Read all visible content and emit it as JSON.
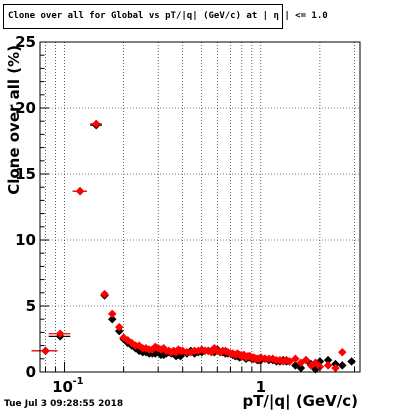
{
  "title": "Clone  over all for Global vs pT/|q| (GeV/c) at |  η  | <= 1.0",
  "timestamp": "Tue Jul  3 09:28:55 2018",
  "chart_data": {
    "type": "scatter",
    "xlabel": "pT/|q| (GeV/c)",
    "ylabel": "Clone  over all (%)",
    "xscale": "log",
    "xlim": [
      0.075,
      3.2
    ],
    "ylim": [
      0,
      25
    ],
    "grid": true,
    "x_ticks": [
      {
        "value": 0.1,
        "label": "10",
        "exp": "-1"
      },
      {
        "value": 1,
        "label": "1"
      }
    ],
    "y_ticks": [
      0,
      5,
      10,
      15,
      20,
      25
    ],
    "colors": {
      "series_black": "#000000",
      "series_red": "#ff0000"
    },
    "series": [
      {
        "color": "#000000",
        "x": [
          0.08,
          0.095,
          0.12,
          0.145,
          0.16,
          0.175,
          0.19,
          0.2,
          0.21,
          0.22,
          0.23,
          0.24,
          0.25,
          0.26,
          0.27,
          0.28,
          0.29,
          0.3,
          0.31,
          0.32,
          0.33,
          0.34,
          0.35,
          0.36,
          0.37,
          0.38,
          0.39,
          0.4,
          0.42,
          0.44,
          0.46,
          0.48,
          0.5,
          0.52,
          0.54,
          0.56,
          0.58,
          0.6,
          0.62,
          0.64,
          0.66,
          0.68,
          0.7,
          0.72,
          0.74,
          0.76,
          0.78,
          0.8,
          0.82,
          0.84,
          0.86,
          0.88,
          0.9,
          0.92,
          0.94,
          0.96,
          0.98,
          1.0,
          1.05,
          1.1,
          1.15,
          1.2,
          1.25,
          1.3,
          1.35,
          1.4,
          1.5,
          1.6,
          1.7,
          1.8,
          1.9,
          2.0,
          2.2,
          2.4,
          2.6,
          2.9
        ],
        "y": [
          1.6,
          2.7,
          13.7,
          18.7,
          5.8,
          4.0,
          3.1,
          2.5,
          2.2,
          2.0,
          1.8,
          1.6,
          1.5,
          1.5,
          1.4,
          1.4,
          1.4,
          1.6,
          1.3,
          1.3,
          1.4,
          1.5,
          1.4,
          1.4,
          1.2,
          1.3,
          1.2,
          1.5,
          1.4,
          1.6,
          1.4,
          1.5,
          1.5,
          1.6,
          1.6,
          1.6,
          1.5,
          1.7,
          1.5,
          1.5,
          1.4,
          1.4,
          1.4,
          1.3,
          1.2,
          1.2,
          1.1,
          1.2,
          1.2,
          1.0,
          1.1,
          1.1,
          1.0,
          1.0,
          1.0,
          0.9,
          0.9,
          0.9,
          1.0,
          0.9,
          0.9,
          0.8,
          0.8,
          0.9,
          0.8,
          0.8,
          0.5,
          0.3,
          0.9,
          0.6,
          0.2,
          0.8,
          0.9,
          0.6,
          0.5,
          0.8
        ]
      },
      {
        "color": "#ff0000",
        "x": [
          0.08,
          0.095,
          0.12,
          0.145,
          0.16,
          0.175,
          0.19,
          0.2,
          0.21,
          0.22,
          0.23,
          0.24,
          0.25,
          0.26,
          0.27,
          0.28,
          0.29,
          0.3,
          0.31,
          0.32,
          0.33,
          0.34,
          0.35,
          0.36,
          0.37,
          0.38,
          0.39,
          0.4,
          0.42,
          0.44,
          0.46,
          0.48,
          0.5,
          0.52,
          0.54,
          0.56,
          0.58,
          0.6,
          0.62,
          0.64,
          0.66,
          0.68,
          0.7,
          0.72,
          0.74,
          0.76,
          0.78,
          0.8,
          0.82,
          0.84,
          0.86,
          0.88,
          0.9,
          0.92,
          0.94,
          0.96,
          0.98,
          1.0,
          1.05,
          1.1,
          1.15,
          1.2,
          1.25,
          1.3,
          1.35,
          1.4,
          1.5,
          1.6,
          1.7,
          1.8,
          1.9,
          2.0,
          2.2,
          2.4,
          2.6
        ],
        "y": [
          1.6,
          2.9,
          13.7,
          18.8,
          5.9,
          4.4,
          3.4,
          2.6,
          2.4,
          2.2,
          2.0,
          2.0,
          1.8,
          1.8,
          1.7,
          1.7,
          1.9,
          1.8,
          1.7,
          1.8,
          1.6,
          1.6,
          1.5,
          1.6,
          1.5,
          1.7,
          1.6,
          1.6,
          1.5,
          1.5,
          1.6,
          1.6,
          1.7,
          1.6,
          1.6,
          1.5,
          1.8,
          1.6,
          1.5,
          1.6,
          1.6,
          1.5,
          1.4,
          1.4,
          1.3,
          1.4,
          1.3,
          1.2,
          1.3,
          1.1,
          1.2,
          1.2,
          1.1,
          1.1,
          1.0,
          1.0,
          1.0,
          1.1,
          1.0,
          1.0,
          1.0,
          0.9,
          0.9,
          0.8,
          0.9,
          0.8,
          1.0,
          0.7,
          0.9,
          0.5,
          0.7,
          0.4,
          0.5,
          0.3,
          1.5
        ]
      }
    ]
  }
}
